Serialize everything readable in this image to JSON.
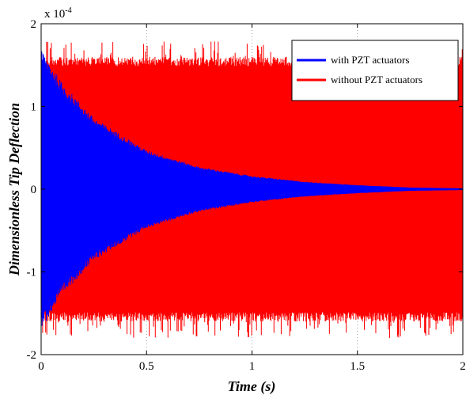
{
  "chart_data": {
    "type": "line",
    "xlabel": "Time (s)",
    "ylabel": "Dimensionless Tip Deflection",
    "xlim": [
      0,
      2
    ],
    "ylim": [
      -2,
      2
    ],
    "y_scale_multiplier": "x 10",
    "y_scale_exponent": "-4",
    "x_ticks": [
      "0",
      "0.5",
      "1",
      "1.5",
      "2"
    ],
    "y_ticks": [
      "2",
      "1",
      "0",
      "-1",
      "-2"
    ],
    "grid": true,
    "legend_position": "top-right",
    "series": [
      {
        "name": "without PZT actuators",
        "color": "#ff0000",
        "envelope": "constant",
        "amplitude": 1.6,
        "peak_amplitude": 1.8
      },
      {
        "name": "with PZT actuators",
        "color": "#0000ff",
        "envelope": "decaying",
        "amplitude_points": [
          {
            "x": 0.0,
            "y": 1.7
          },
          {
            "x": 0.1,
            "y": 1.28
          },
          {
            "x": 0.25,
            "y": 0.86
          },
          {
            "x": 0.5,
            "y": 0.47
          },
          {
            "x": 0.75,
            "y": 0.27
          },
          {
            "x": 1.0,
            "y": 0.16
          },
          {
            "x": 1.25,
            "y": 0.09
          },
          {
            "x": 1.5,
            "y": 0.05
          },
          {
            "x": 1.75,
            "y": 0.02
          },
          {
            "x": 2.0,
            "y": 0.01
          }
        ]
      }
    ]
  }
}
